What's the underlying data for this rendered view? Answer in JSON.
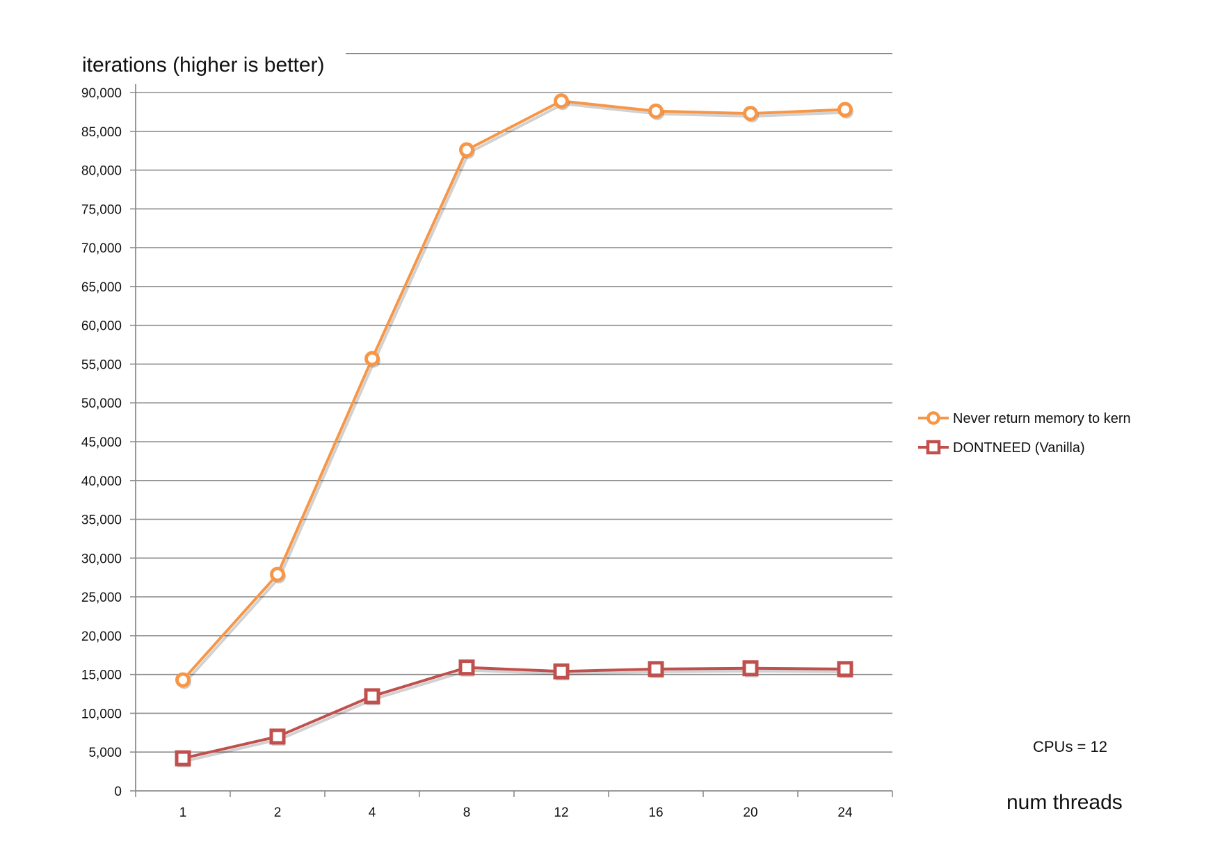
{
  "chart_data": {
    "type": "line",
    "ylabel": "iterations (higher is better)",
    "xlabel": "num threads",
    "note": "CPUs = 12",
    "categories": [
      "1",
      "2",
      "4",
      "8",
      "12",
      "16",
      "20",
      "24"
    ],
    "ylim": [
      0,
      90000
    ],
    "ytick_step": 5000,
    "ytick_labels": [
      "0",
      "5,000",
      "10,000",
      "15,000",
      "20,000",
      "25,000",
      "30,000",
      "35,000",
      "40,000",
      "45,000",
      "50,000",
      "55,000",
      "60,000",
      "65,000",
      "70,000",
      "75,000",
      "80,000",
      "85,000",
      "90,000"
    ],
    "grid": true,
    "legend_position": "right",
    "series": [
      {
        "name": "Never return memory to kern",
        "color": "#f79646",
        "marker": "circle",
        "values": [
          14300,
          27900,
          55700,
          82600,
          88900,
          87600,
          87300,
          87800
        ]
      },
      {
        "name": "DONTNEED (Vanilla)",
        "color": "#c0504d",
        "marker": "square",
        "values": [
          4200,
          7000,
          12200,
          15900,
          15400,
          15700,
          15800,
          15700
        ]
      }
    ]
  }
}
